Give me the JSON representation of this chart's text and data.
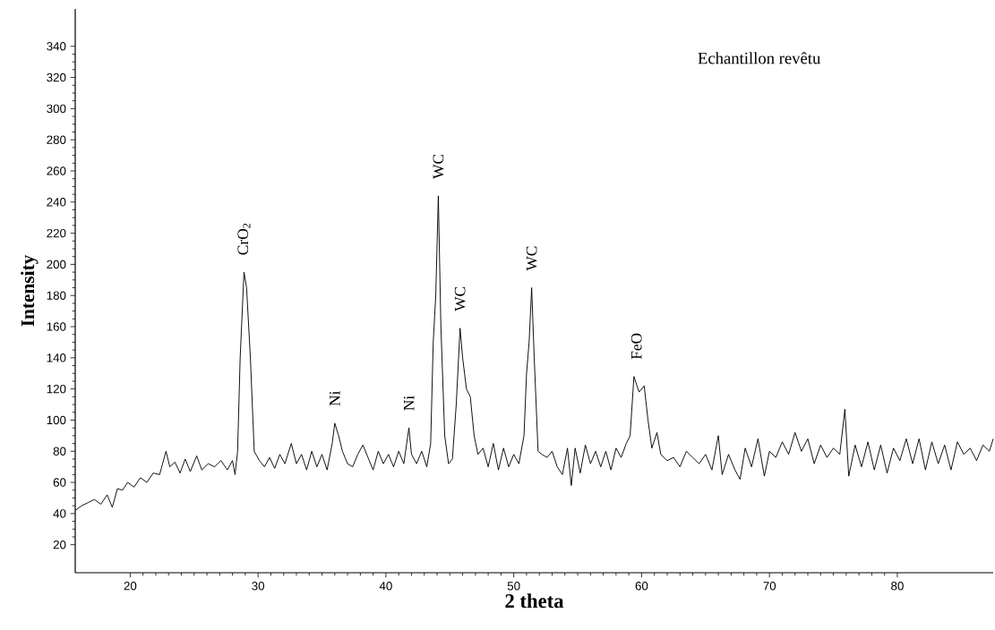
{
  "chart_data": {
    "type": "line",
    "xlabel": "2 theta",
    "ylabel": "Intensity",
    "xlim": [
      15.7,
      87.5
    ],
    "ylim": [
      2,
      364
    ],
    "xticks": [
      20,
      30,
      40,
      50,
      60,
      70,
      80
    ],
    "yticks": [
      20,
      40,
      60,
      80,
      100,
      120,
      140,
      160,
      180,
      200,
      220,
      240,
      260,
      280,
      300,
      320,
      340
    ],
    "grid": false,
    "marker": "none",
    "line_style": "solid",
    "series": [
      {
        "color": "#000000",
        "x": [
          15.7,
          16.2,
          16.7,
          17.2,
          17.7,
          18.2,
          18.6,
          19.0,
          19.4,
          19.8,
          20.3,
          20.8,
          21.3,
          21.8,
          22.3,
          22.8,
          23.1,
          23.5,
          23.9,
          24.3,
          24.7,
          25.2,
          25.6,
          26.1,
          26.6,
          27.1,
          27.6,
          28.0,
          28.2,
          28.4,
          28.6,
          28.9,
          29.1,
          29.4,
          29.7,
          30.1,
          30.5,
          30.9,
          31.3,
          31.7,
          32.1,
          32.6,
          33.0,
          33.4,
          33.8,
          34.2,
          34.6,
          35.0,
          35.4,
          35.8,
          36.0,
          36.3,
          36.6,
          37.0,
          37.4,
          37.8,
          38.2,
          38.6,
          39.0,
          39.4,
          39.8,
          40.2,
          40.6,
          41.0,
          41.4,
          41.8,
          42.0,
          42.4,
          42.8,
          43.2,
          43.5,
          43.7,
          43.9,
          44.1,
          44.3,
          44.6,
          44.9,
          45.2,
          45.5,
          45.8,
          46.0,
          46.3,
          46.6,
          46.9,
          47.2,
          47.6,
          48.0,
          48.4,
          48.8,
          49.2,
          49.6,
          50.0,
          50.4,
          50.8,
          51.0,
          51.2,
          51.4,
          51.6,
          51.9,
          52.2,
          52.6,
          53.0,
          53.4,
          53.8,
          54.2,
          54.5,
          54.8,
          55.2,
          55.6,
          56.0,
          56.4,
          56.8,
          57.2,
          57.6,
          58.0,
          58.4,
          58.8,
          59.1,
          59.4,
          59.8,
          60.2,
          60.5,
          60.8,
          61.2,
          61.5,
          62.0,
          62.5,
          63.0,
          63.5,
          64.0,
          64.5,
          65.0,
          65.5,
          66.0,
          66.3,
          66.8,
          67.3,
          67.7,
          68.1,
          68.6,
          69.1,
          69.6,
          70.0,
          70.5,
          71.0,
          71.5,
          72.0,
          72.5,
          73.0,
          73.5,
          74.0,
          74.5,
          75.0,
          75.5,
          75.9,
          76.2,
          76.7,
          77.2,
          77.7,
          78.2,
          78.7,
          79.2,
          79.7,
          80.2,
          80.7,
          81.2,
          81.7,
          82.2,
          82.7,
          83.2,
          83.7,
          84.2,
          84.7,
          85.2,
          85.7,
          86.2,
          86.7,
          87.2,
          87.5
        ],
        "values": [
          42,
          45,
          47,
          49,
          46,
          52,
          44,
          56,
          55,
          60,
          57,
          63,
          60,
          66,
          65,
          80,
          70,
          73,
          66,
          75,
          67,
          77,
          68,
          72,
          70,
          74,
          68,
          74,
          65,
          80,
          140,
          195,
          185,
          140,
          80,
          74,
          70,
          76,
          69,
          78,
          72,
          85,
          72,
          78,
          68,
          80,
          70,
          78,
          68,
          85,
          98,
          90,
          80,
          72,
          70,
          78,
          84,
          76,
          68,
          80,
          72,
          78,
          70,
          80,
          72,
          95,
          78,
          72,
          80,
          70,
          85,
          150,
          180,
          244,
          160,
          90,
          72,
          75,
          110,
          159,
          140,
          120,
          115,
          90,
          78,
          82,
          70,
          85,
          68,
          82,
          70,
          78,
          72,
          90,
          130,
          150,
          185,
          140,
          80,
          78,
          76,
          80,
          70,
          65,
          82,
          58,
          82,
          66,
          84,
          72,
          80,
          70,
          80,
          68,
          82,
          76,
          85,
          90,
          128,
          118,
          122,
          100,
          82,
          92,
          78,
          74,
          76,
          70,
          80,
          76,
          72,
          78,
          68,
          90,
          65,
          78,
          68,
          62,
          82,
          70,
          88,
          64,
          80,
          76,
          86,
          78,
          92,
          80,
          88,
          72,
          84,
          76,
          82,
          78,
          107,
          64,
          84,
          70,
          86,
          68,
          84,
          66,
          82,
          74,
          88,
          72,
          88,
          68,
          86,
          72,
          84,
          68,
          86,
          78,
          82,
          74,
          84,
          80,
          88
        ]
      }
    ],
    "annotations": [
      "Echantillon revêtu",
      {
        "text": "CrO$_{2}$",
        "x": 28.9,
        "y": 195
      },
      {
        "text": "Ni",
        "x": 36.0,
        "y": 98
      },
      {
        "text": "Ni",
        "x": 41.8,
        "y": 95
      },
      {
        "text": "WC",
        "x": 44.1,
        "y": 244
      },
      {
        "text": "WC",
        "x": 45.8,
        "y": 159
      },
      {
        "text": "WC",
        "x": 51.4,
        "y": 185
      },
      {
        "text": "FeO",
        "x": 59.6,
        "y": 128
      }
    ]
  }
}
